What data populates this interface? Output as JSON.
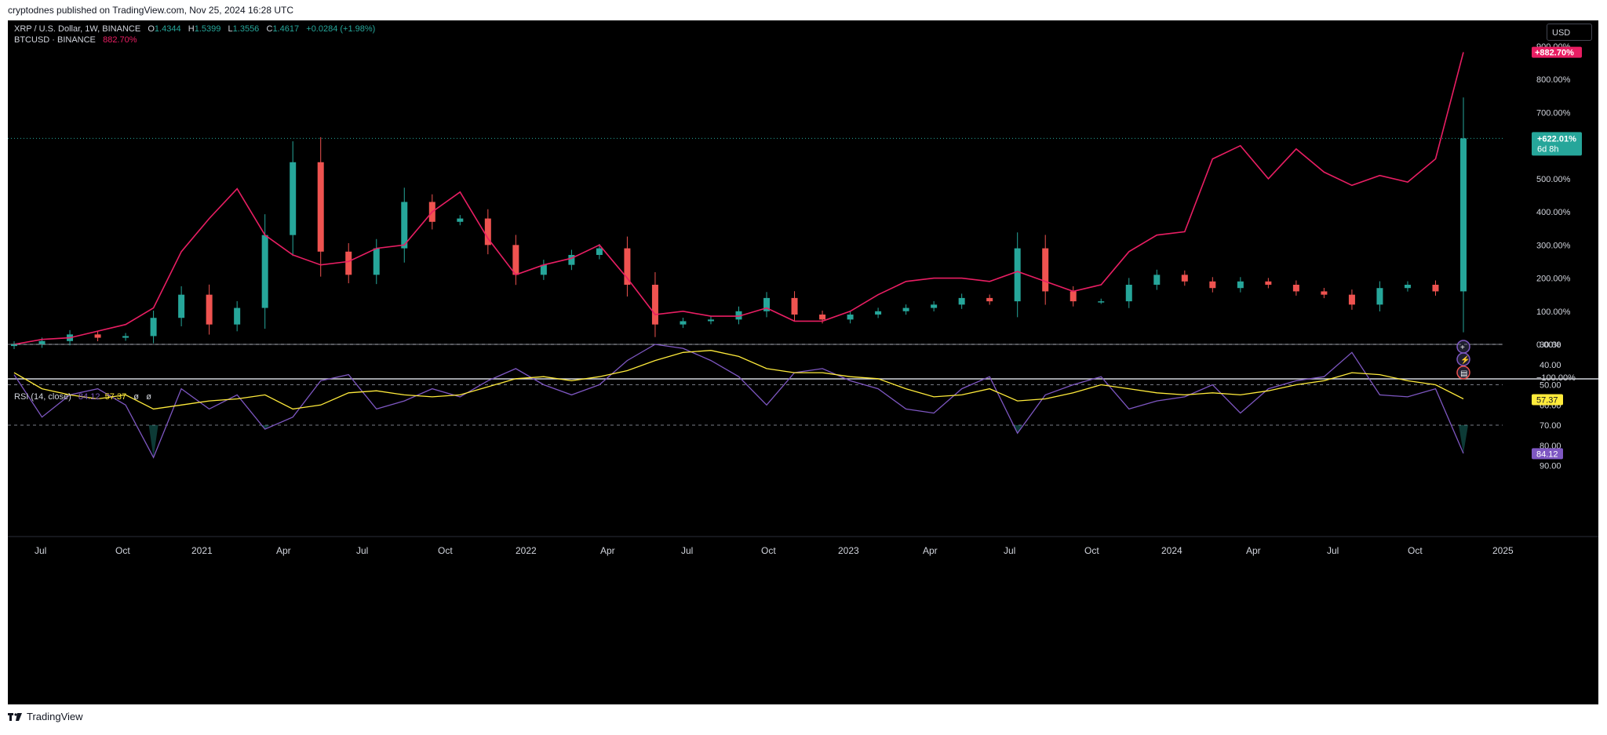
{
  "header": {
    "published": "cryptodnes published on TradingView.com, Nov 25, 2024 16:28 UTC"
  },
  "legend": {
    "symbol": "XRP / U.S. Dollar, 1W, BINANCE",
    "o_label": "O",
    "o": "1.4344",
    "h_label": "H",
    "h": "1.5399",
    "l_label": "L",
    "l": "1.3556",
    "c_label": "C",
    "c": "1.4617",
    "change": "+0.0284 (+1.98%)",
    "compare": "BTCUSD · BINANCE",
    "compare_value": "882.70%"
  },
  "currency_button": "USD",
  "price_axis": {
    "ticks": [
      "900.00%",
      "800.00%",
      "700.00%",
      "500.00%",
      "400.00%",
      "300.00%",
      "200.00%",
      "100.00%",
      "0.00%",
      "−100.00%"
    ],
    "btc_label": "+882.70%",
    "xrp_label": "+622.01%",
    "xrp_countdown": "6d 8h"
  },
  "rsi": {
    "title": "RSI (14, close)",
    "value": "84.12",
    "ma_value": "57.37",
    "extra1": "ø",
    "extra2": "ø",
    "ticks": [
      "90.00",
      "80.00",
      "70.00",
      "60.00",
      "50.00",
      "40.00",
      "30.00"
    ],
    "value_label": "84.12",
    "ma_label": "57.37"
  },
  "time_axis": [
    "Jul",
    "Oct",
    "2021",
    "Apr",
    "Jul",
    "Oct",
    "2022",
    "Apr",
    "Jul",
    "Oct",
    "2023",
    "Apr",
    "Jul",
    "Oct",
    "2024",
    "Apr",
    "Jul",
    "Oct",
    "2025"
  ],
  "footer": {
    "brand": "TradingView"
  },
  "colors": {
    "up": "#26a69a",
    "down": "#ef5350",
    "btc": "#e91e63",
    "rsi": "#7e57c2",
    "rsi_ma": "#ffeb3b"
  },
  "chart_data": [
    {
      "type": "line",
      "title": "XRP / U.S. Dollar, 1W, BINANCE (percent mode) vs BTCUSD",
      "x": [
        "2020-07",
        "2020-08",
        "2020-09",
        "2020-10",
        "2020-11",
        "2020-12",
        "2021-01",
        "2021-02",
        "2021-03",
        "2021-04",
        "2021-05",
        "2021-06",
        "2021-07",
        "2021-08",
        "2021-09",
        "2021-10",
        "2021-11",
        "2021-12",
        "2022-01",
        "2022-02",
        "2022-03",
        "2022-04",
        "2022-05",
        "2022-06",
        "2022-07",
        "2022-08",
        "2022-09",
        "2022-10",
        "2022-11",
        "2022-12",
        "2023-01",
        "2023-02",
        "2023-03",
        "2023-04",
        "2023-05",
        "2023-06",
        "2023-07",
        "2023-08",
        "2023-09",
        "2023-10",
        "2023-11",
        "2023-12",
        "2024-01",
        "2024-02",
        "2024-03",
        "2024-04",
        "2024-05",
        "2024-06",
        "2024-07",
        "2024-08",
        "2024-09",
        "2024-10",
        "2024-11"
      ],
      "series": [
        {
          "name": "XRP / U.S. Dollar",
          "values": [
            0,
            10,
            30,
            20,
            25,
            80,
            150,
            60,
            110,
            330,
            550,
            280,
            210,
            290,
            430,
            370,
            380,
            300,
            210,
            240,
            270,
            290,
            180,
            60,
            70,
            75,
            100,
            140,
            90,
            75,
            90,
            100,
            110,
            120,
            140,
            130,
            290,
            160,
            130,
            130,
            180,
            210,
            190,
            170,
            190,
            180,
            160,
            150,
            120,
            170,
            180,
            160,
            622
          ]
        },
        {
          "name": "BTCUSD",
          "values": [
            0,
            15,
            20,
            40,
            60,
            110,
            280,
            380,
            470,
            330,
            270,
            240,
            250,
            290,
            300,
            400,
            460,
            320,
            210,
            240,
            260,
            300,
            200,
            90,
            100,
            85,
            85,
            110,
            70,
            70,
            100,
            150,
            190,
            200,
            200,
            190,
            220,
            190,
            160,
            180,
            280,
            330,
            340,
            560,
            600,
            500,
            590,
            520,
            480,
            510,
            490,
            560,
            882
          ]
        }
      ],
      "ylim": [
        -100,
        900
      ]
    },
    {
      "type": "line",
      "title": "RSI (14, close)",
      "x": [
        "2020-07",
        "2020-08",
        "2020-09",
        "2020-10",
        "2020-11",
        "2020-12",
        "2021-01",
        "2021-02",
        "2021-03",
        "2021-04",
        "2021-05",
        "2021-06",
        "2021-07",
        "2021-08",
        "2021-09",
        "2021-10",
        "2021-11",
        "2021-12",
        "2022-01",
        "2022-02",
        "2022-03",
        "2022-04",
        "2022-05",
        "2022-06",
        "2022-07",
        "2022-08",
        "2022-09",
        "2022-10",
        "2022-11",
        "2022-12",
        "2023-01",
        "2023-02",
        "2023-03",
        "2023-04",
        "2023-05",
        "2023-06",
        "2023-07",
        "2023-08",
        "2023-09",
        "2023-10",
        "2023-11",
        "2023-12",
        "2024-01",
        "2024-02",
        "2024-03",
        "2024-04",
        "2024-05",
        "2024-06",
        "2024-07",
        "2024-08",
        "2024-09",
        "2024-10",
        "2024-11"
      ],
      "series": [
        {
          "name": "RSI",
          "values": [
            45,
            66,
            55,
            52,
            60,
            86,
            52,
            62,
            55,
            72,
            66,
            48,
            45,
            62,
            58,
            52,
            56,
            48,
            42,
            50,
            55,
            50,
            38,
            30,
            32,
            38,
            46,
            60,
            44,
            42,
            48,
            52,
            62,
            64,
            52,
            46,
            74,
            55,
            50,
            46,
            62,
            58,
            56,
            50,
            64,
            52,
            48,
            46,
            34,
            55,
            56,
            52,
            84
          ]
        },
        {
          "name": "RSI-based MA",
          "values": [
            44,
            52,
            55,
            57,
            55,
            62,
            60,
            58,
            57,
            55,
            62,
            60,
            54,
            53,
            55,
            56,
            55,
            51,
            47,
            46,
            48,
            46,
            43,
            38,
            34,
            33,
            36,
            42,
            44,
            44,
            46,
            47,
            52,
            56,
            55,
            52,
            58,
            57,
            54,
            50,
            52,
            54,
            55,
            54,
            55,
            53,
            50,
            48,
            44,
            45,
            48,
            50,
            57
          ]
        }
      ],
      "ylim": [
        28,
        92
      ]
    }
  ]
}
